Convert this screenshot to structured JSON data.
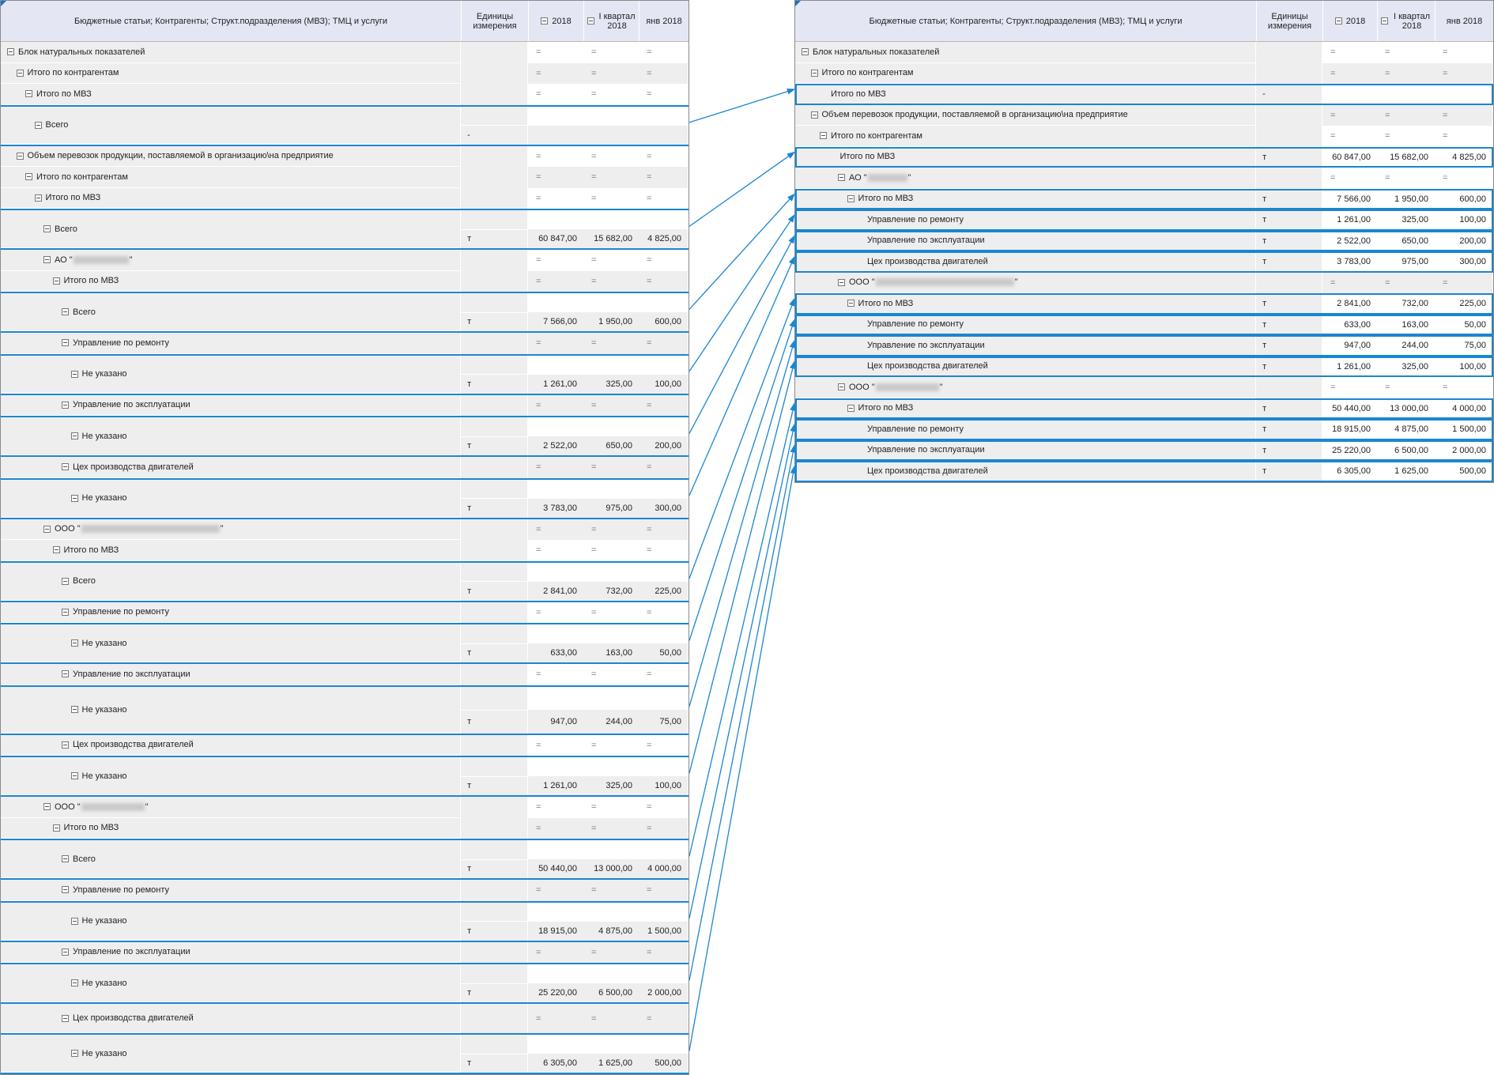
{
  "colors": {
    "accent": "#1a86d0",
    "header_bg": "#e4e7f3",
    "row_bg": "#eeeeee"
  },
  "headers": {
    "label": "Бюджетные статьи; Контрагенты; Структ.подразделения (МВЗ); ТМЦ и услуги",
    "unit": "Единицы измерения",
    "y2018": "2018",
    "q1": "I квартал 2018",
    "jan_left": "янв 2018",
    "jan_right": "янв 2018"
  },
  "eq": "=",
  "left_rows": [
    {
      "label": "Блок натуральных показателей",
      "level": 0,
      "kind": "group"
    },
    {
      "label": "Итого по контрагентам",
      "level": 1,
      "kind": "group"
    },
    {
      "label": "Итого по МВЗ",
      "level": 2,
      "kind": "group"
    },
    {
      "label": "Всего",
      "level": 3,
      "kind": "tall",
      "unit": "-",
      "values": [
        "",
        "",
        ""
      ]
    },
    {
      "label": "Объем перевозок продукции, поставляемой в организацию\\на предприятие",
      "level": 1,
      "kind": "group"
    },
    {
      "label": "Итого по контрагентам",
      "level": 2,
      "kind": "group"
    },
    {
      "label": "Итого по МВЗ",
      "level": 3,
      "kind": "group"
    },
    {
      "label": "Всего",
      "level": 4,
      "kind": "tall",
      "unit": "т",
      "values": [
        "60 847,00",
        "15 682,00",
        "4 825,00"
      ]
    },
    {
      "label": "АО \"",
      "redacted": 70,
      "suffix": "\"",
      "level": 4,
      "kind": "group"
    },
    {
      "label": "Итого по МВЗ",
      "level": 5,
      "kind": "group"
    },
    {
      "label": "Всего",
      "level": 6,
      "kind": "tall",
      "unit": "т",
      "values": [
        "7 566,00",
        "1 950,00",
        "600,00"
      ]
    },
    {
      "label": "Управление по ремонту",
      "level": 6,
      "kind": "group"
    },
    {
      "label": "Не указано",
      "level": 7,
      "kind": "tall",
      "unit": "т",
      "values": [
        "1 261,00",
        "325,00",
        "100,00"
      ]
    },
    {
      "label": "Управление по эксплуатации",
      "level": 6,
      "kind": "group"
    },
    {
      "label": "Не указано",
      "level": 7,
      "kind": "tall",
      "unit": "т",
      "values": [
        "2 522,00",
        "650,00",
        "200,00"
      ]
    },
    {
      "label": "Цех производства двигателей",
      "level": 6,
      "kind": "group"
    },
    {
      "label": "Не указано",
      "level": 7,
      "kind": "tall",
      "unit": "т",
      "values": [
        "3 783,00",
        "975,00",
        "300,00"
      ]
    },
    {
      "label": "ООО \"",
      "redacted": 175,
      "suffix": "\"",
      "level": 4,
      "kind": "group"
    },
    {
      "label": "Итого по МВЗ",
      "level": 5,
      "kind": "group"
    },
    {
      "label": "Всего",
      "level": 6,
      "kind": "tall",
      "unit": "т",
      "values": [
        "2 841,00",
        "732,00",
        "225,00"
      ]
    },
    {
      "label": "Управление по ремонту",
      "level": 6,
      "kind": "group"
    },
    {
      "label": "Не указано",
      "level": 7,
      "kind": "tall",
      "unit": "т",
      "values": [
        "633,00",
        "163,00",
        "50,00"
      ]
    },
    {
      "label": "Управление по эксплуатации",
      "level": 6,
      "kind": "group"
    },
    {
      "label": "Не указано",
      "level": 7,
      "kind": "tall",
      "unit": "т",
      "values": [
        "947,00",
        "244,00",
        "75,00"
      ]
    },
    {
      "label": "Цех производства двигателей",
      "level": 6,
      "kind": "group"
    },
    {
      "label": "Не указано",
      "level": 7,
      "kind": "tall",
      "unit": "т",
      "values": [
        "1 261,00",
        "325,00",
        "100,00"
      ]
    },
    {
      "label": "ООО \"",
      "redacted": 80,
      "suffix": "\"",
      "level": 4,
      "kind": "group"
    },
    {
      "label": "Итого по МВЗ",
      "level": 5,
      "kind": "group"
    },
    {
      "label": "Всего",
      "level": 6,
      "kind": "tall",
      "unit": "т",
      "values": [
        "50 440,00",
        "13 000,00",
        "4 000,00"
      ]
    },
    {
      "label": "Управление по ремонту",
      "level": 6,
      "kind": "group"
    },
    {
      "label": "Не указано",
      "level": 7,
      "kind": "tall",
      "unit": "т",
      "values": [
        "18 915,00",
        "4 875,00",
        "1 500,00"
      ]
    },
    {
      "label": "Управление по эксплуатации",
      "level": 6,
      "kind": "group"
    },
    {
      "label": "Не указано",
      "level": 7,
      "kind": "tall",
      "unit": "т",
      "values": [
        "25 220,00",
        "6 500,00",
        "2 000,00"
      ]
    },
    {
      "label": "Цех производства двигателей",
      "level": 6,
      "kind": "group"
    },
    {
      "label": "Не указано",
      "level": 7,
      "kind": "tall",
      "unit": "т",
      "values": [
        "6 305,00",
        "1 625,00",
        "500,00"
      ]
    }
  ],
  "right_rows": [
    {
      "label": "Блок натуральных показателей",
      "level": 0,
      "kind": "group"
    },
    {
      "label": "Итого по контрагентам",
      "level": 1,
      "kind": "group"
    },
    {
      "label": "Итого по МВЗ",
      "level": 2,
      "kind": "leaf",
      "unit": "-",
      "values": [
        "",
        "",
        ""
      ],
      "hl": true
    },
    {
      "label": "Объем перевозок продукции, поставляемой в организацию\\на предприятие",
      "level": 1,
      "kind": "group"
    },
    {
      "label": "Итого по контрагентам",
      "level": 2,
      "kind": "group"
    },
    {
      "label": "Итого по МВЗ",
      "level": 3,
      "kind": "leaf",
      "unit": "т",
      "values": [
        "60 847,00",
        "15 682,00",
        "4 825,00"
      ],
      "hl": true
    },
    {
      "label": "АО \"",
      "redacted": 50,
      "suffix": "\"",
      "level": 4,
      "kind": "group"
    },
    {
      "label": "Итого по МВЗ",
      "level": 5,
      "kind": "leafexp",
      "unit": "т",
      "values": [
        "7 566,00",
        "1 950,00",
        "600,00"
      ],
      "hl": true
    },
    {
      "label": "Управление по ремонту",
      "level": 6,
      "kind": "leaf",
      "unit": "т",
      "values": [
        "1 261,00",
        "325,00",
        "100,00"
      ],
      "hl": true
    },
    {
      "label": "Управление по эксплуатации",
      "level": 6,
      "kind": "leaf",
      "unit": "т",
      "values": [
        "2 522,00",
        "650,00",
        "200,00"
      ],
      "hl": true
    },
    {
      "label": "Цех производства двигателей",
      "level": 6,
      "kind": "leaf",
      "unit": "т",
      "values": [
        "3 783,00",
        "975,00",
        "300,00"
      ],
      "hl": true
    },
    {
      "label": "ООО \"",
      "redacted": 175,
      "suffix": "\"",
      "level": 4,
      "kind": "group"
    },
    {
      "label": "Итого по МВЗ",
      "level": 5,
      "kind": "leafexp",
      "unit": "т",
      "values": [
        "2 841,00",
        "732,00",
        "225,00"
      ],
      "hl": true
    },
    {
      "label": "Управление по ремонту",
      "level": 6,
      "kind": "leaf",
      "unit": "т",
      "values": [
        "633,00",
        "163,00",
        "50,00"
      ],
      "hl": true
    },
    {
      "label": "Управление по эксплуатации",
      "level": 6,
      "kind": "leaf",
      "unit": "т",
      "values": [
        "947,00",
        "244,00",
        "75,00"
      ],
      "hl": true
    },
    {
      "label": "Цех производства двигателей",
      "level": 6,
      "kind": "leaf",
      "unit": "т",
      "values": [
        "1 261,00",
        "325,00",
        "100,00"
      ],
      "hl": true
    },
    {
      "label": "ООО \"",
      "redacted": 80,
      "suffix": "\"",
      "level": 4,
      "kind": "group"
    },
    {
      "label": "Итого по МВЗ",
      "level": 5,
      "kind": "leafexp",
      "unit": "т",
      "values": [
        "50 440,00",
        "13 000,00",
        "4 000,00"
      ],
      "hl": true
    },
    {
      "label": "Управление по ремонту",
      "level": 6,
      "kind": "leaf",
      "unit": "т",
      "values": [
        "18 915,00",
        "4 875,00",
        "1 500,00"
      ],
      "hl": true
    },
    {
      "label": "Управление по эксплуатации",
      "level": 6,
      "kind": "leaf",
      "unit": "т",
      "values": [
        "25 220,00",
        "6 500,00",
        "2 000,00"
      ],
      "hl": true
    },
    {
      "label": "Цех производства двигателей",
      "level": 6,
      "kind": "leaf",
      "unit": "т",
      "values": [
        "6 305,00",
        "1 625,00",
        "500,00"
      ],
      "hl": true
    }
  ],
  "links": [
    [
      3,
      2
    ],
    [
      7,
      5
    ],
    [
      10,
      7
    ],
    [
      12,
      8
    ],
    [
      14,
      9
    ],
    [
      16,
      10
    ],
    [
      19,
      12
    ],
    [
      21,
      13
    ],
    [
      23,
      14
    ],
    [
      25,
      15
    ],
    [
      28,
      17
    ],
    [
      30,
      18
    ],
    [
      32,
      19
    ],
    [
      34,
      20
    ]
  ]
}
